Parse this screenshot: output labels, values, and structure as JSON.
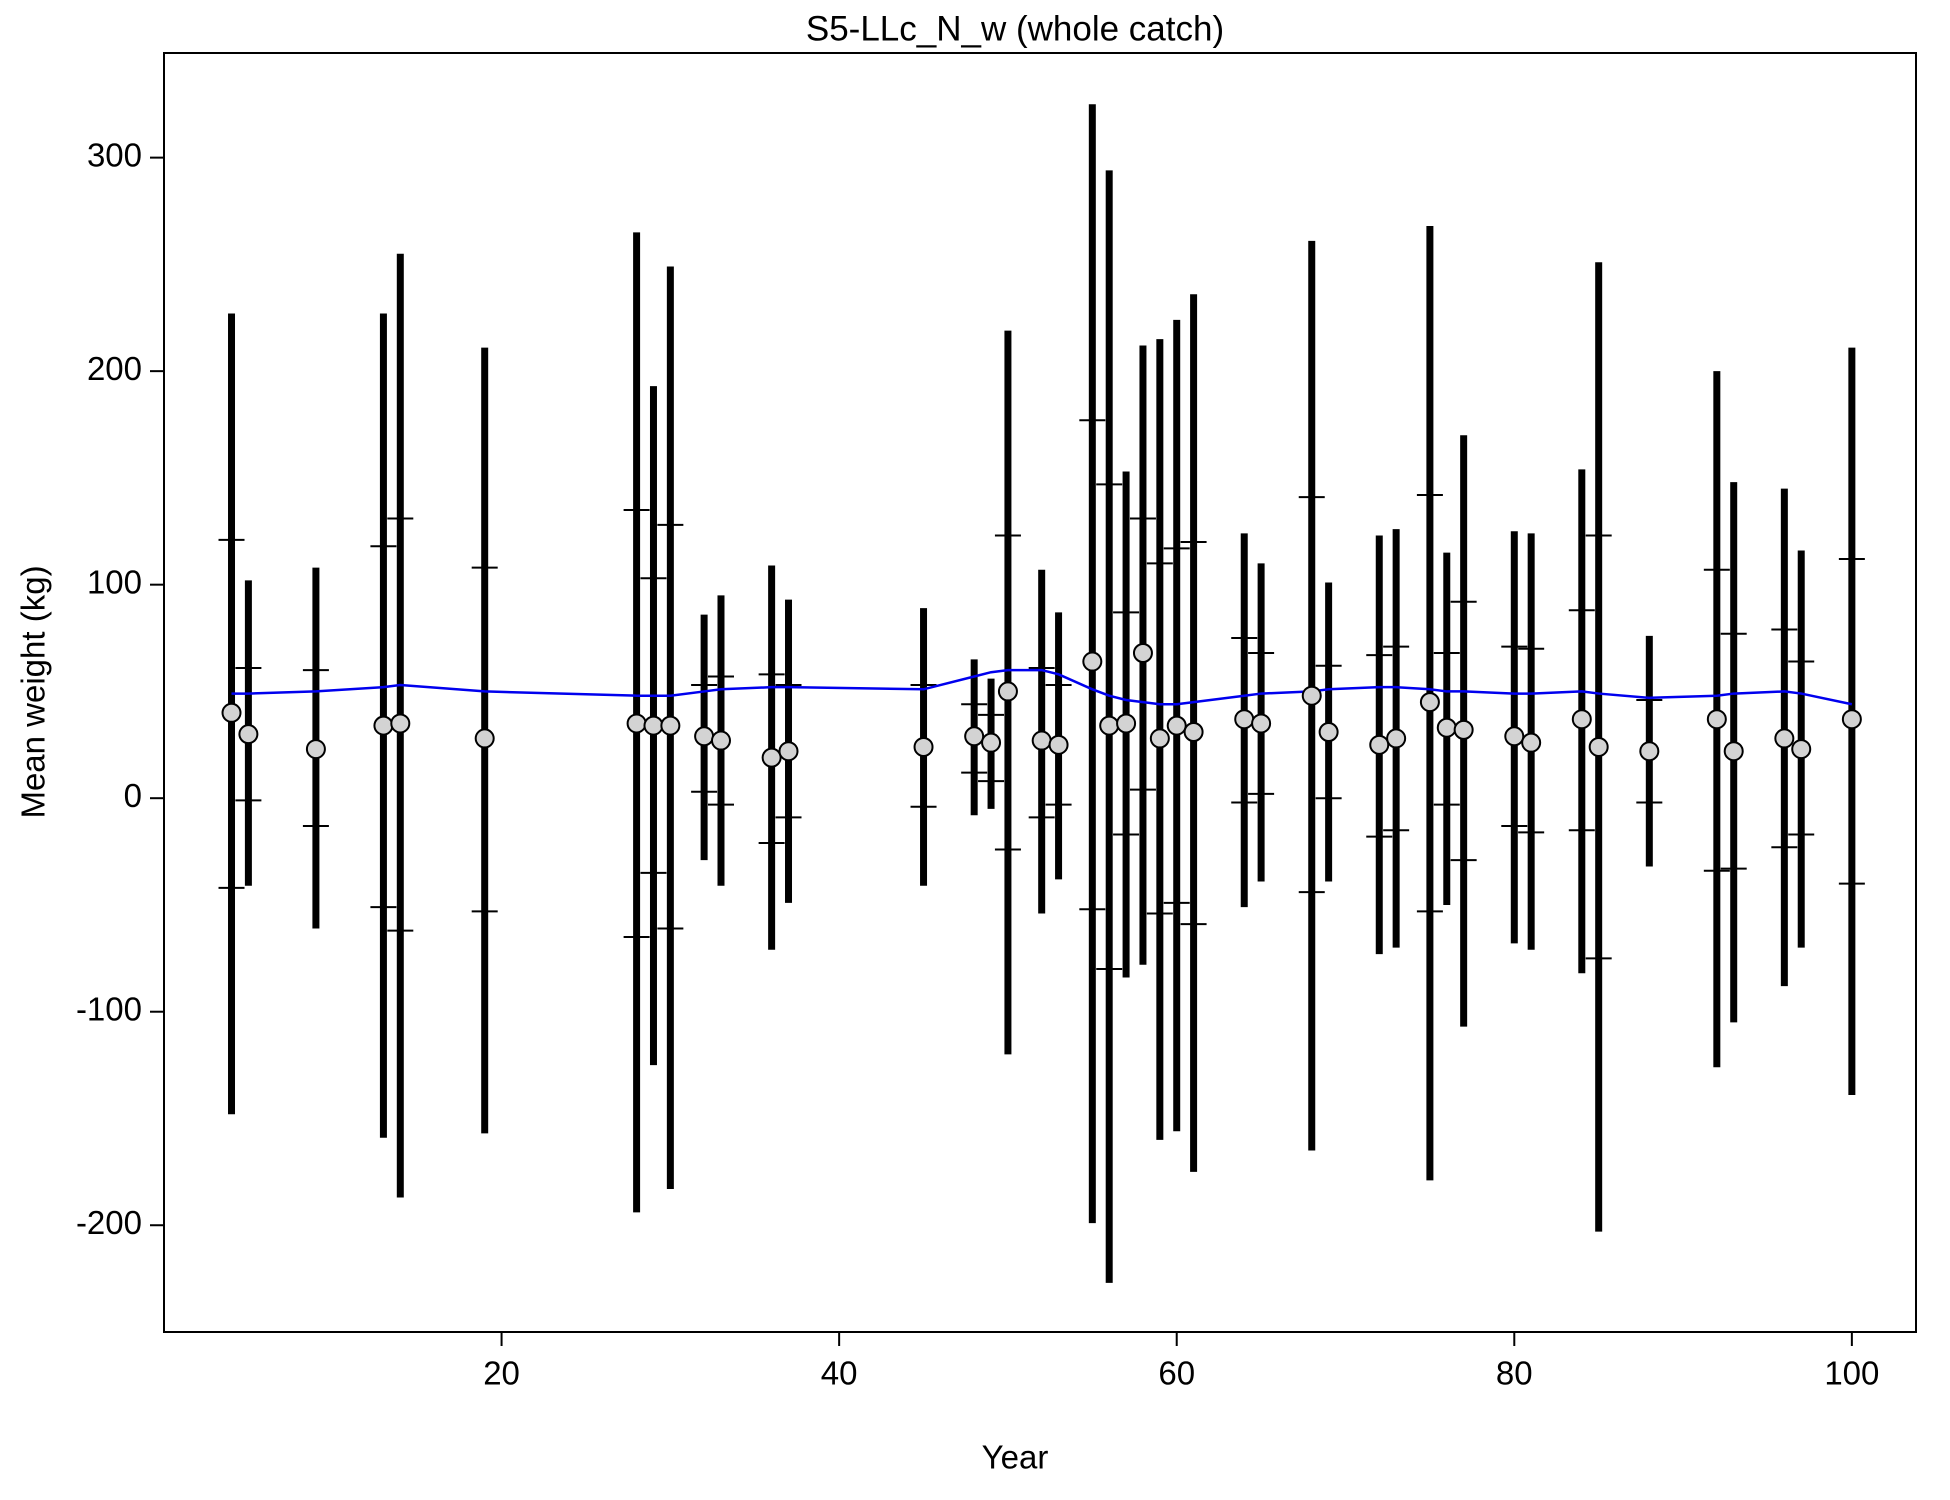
{
  "chart_data": {
    "type": "errorbar",
    "title": "S5-LLc_N_w (whole catch)",
    "xlabel": "Year",
    "ylabel": "Mean weight (kg)",
    "xlim": [
      0,
      103.8
    ],
    "ylim": [
      -250,
      349
    ],
    "xticks": [
      20,
      40,
      60,
      80,
      100
    ],
    "yticks": [
      -200,
      -100,
      0,
      100,
      200,
      300
    ],
    "bar_color": "#000000",
    "point_color": "#d3d3d3",
    "line_color": "#0000ee",
    "x": [
      4,
      5,
      9,
      13,
      14,
      19,
      28,
      29,
      30,
      32,
      33,
      36,
      37,
      45,
      48,
      49,
      50,
      52,
      53,
      55,
      56,
      57,
      58,
      59,
      60,
      61,
      64,
      65,
      68,
      69,
      72,
      73,
      75,
      76,
      77,
      80,
      81,
      84,
      85,
      88,
      92,
      93,
      96,
      97,
      100
    ],
    "observed": [
      40,
      30,
      23,
      34,
      35,
      28,
      35,
      34,
      34,
      29,
      27,
      19,
      22,
      24,
      29,
      26,
      50,
      27,
      25,
      64,
      34,
      35,
      68,
      28,
      34,
      31,
      37,
      35,
      48,
      31,
      25,
      28,
      45,
      33,
      32,
      29,
      26,
      37,
      24,
      22,
      37,
      22,
      28,
      23,
      37
    ],
    "lower": [
      -148,
      -41,
      -61,
      -159,
      -187,
      -157,
      -194,
      -125,
      -183,
      -29,
      -41,
      -71,
      -49,
      -41,
      -8,
      -5,
      -120,
      -54,
      -38,
      -199,
      -227,
      -84,
      -78,
      -160,
      -156,
      -175,
      -51,
      -39,
      -165,
      -39,
      -73,
      -70,
      -179,
      -50,
      -107,
      -68,
      -71,
      -82,
      -203,
      -32,
      -126,
      -105,
      -88,
      -70,
      -139
    ],
    "upper": [
      227,
      102,
      108,
      227,
      255,
      211,
      265,
      193,
      249,
      86,
      95,
      109,
      93,
      89,
      65,
      56,
      219,
      107,
      87,
      325,
      294,
      153,
      212,
      215,
      224,
      236,
      124,
      110,
      261,
      101,
      123,
      126,
      268,
      115,
      170,
      125,
      124,
      154,
      251,
      76,
      200,
      148,
      145,
      116,
      211
    ],
    "inner_lower": [
      -42,
      -1,
      -13,
      -51,
      -62,
      -53,
      -65,
      -35,
      -61,
      3,
      -3,
      -21,
      -9,
      -4,
      12,
      8,
      -24,
      -9,
      -3,
      -52,
      -80,
      -17,
      4,
      -54,
      -49,
      -59,
      -2,
      2,
      -44,
      0,
      -18,
      -15,
      -53,
      -3,
      -29,
      -13,
      -16,
      -15,
      -75,
      -2,
      -34,
      -33,
      -23,
      -17,
      -40
    ],
    "inner_upper": [
      121,
      61,
      60,
      118,
      131,
      108,
      135,
      103,
      128,
      53,
      57,
      58,
      53,
      53,
      44,
      39,
      123,
      61,
      53,
      177,
      147,
      87,
      131,
      110,
      117,
      120,
      75,
      68,
      141,
      62,
      67,
      71,
      142,
      68,
      92,
      71,
      70,
      88,
      123,
      46,
      107,
      77,
      79,
      64,
      112
    ],
    "expected": [
      49,
      49,
      50,
      52,
      53,
      50,
      48,
      48,
      48,
      50,
      51,
      52,
      52,
      51,
      57,
      59,
      60,
      60,
      58,
      51,
      48,
      46,
      45,
      44,
      44,
      45,
      48,
      49,
      50,
      51,
      52,
      52,
      51,
      50,
      50,
      49,
      49,
      50,
      49,
      47,
      48,
      49,
      50,
      49,
      44
    ]
  }
}
